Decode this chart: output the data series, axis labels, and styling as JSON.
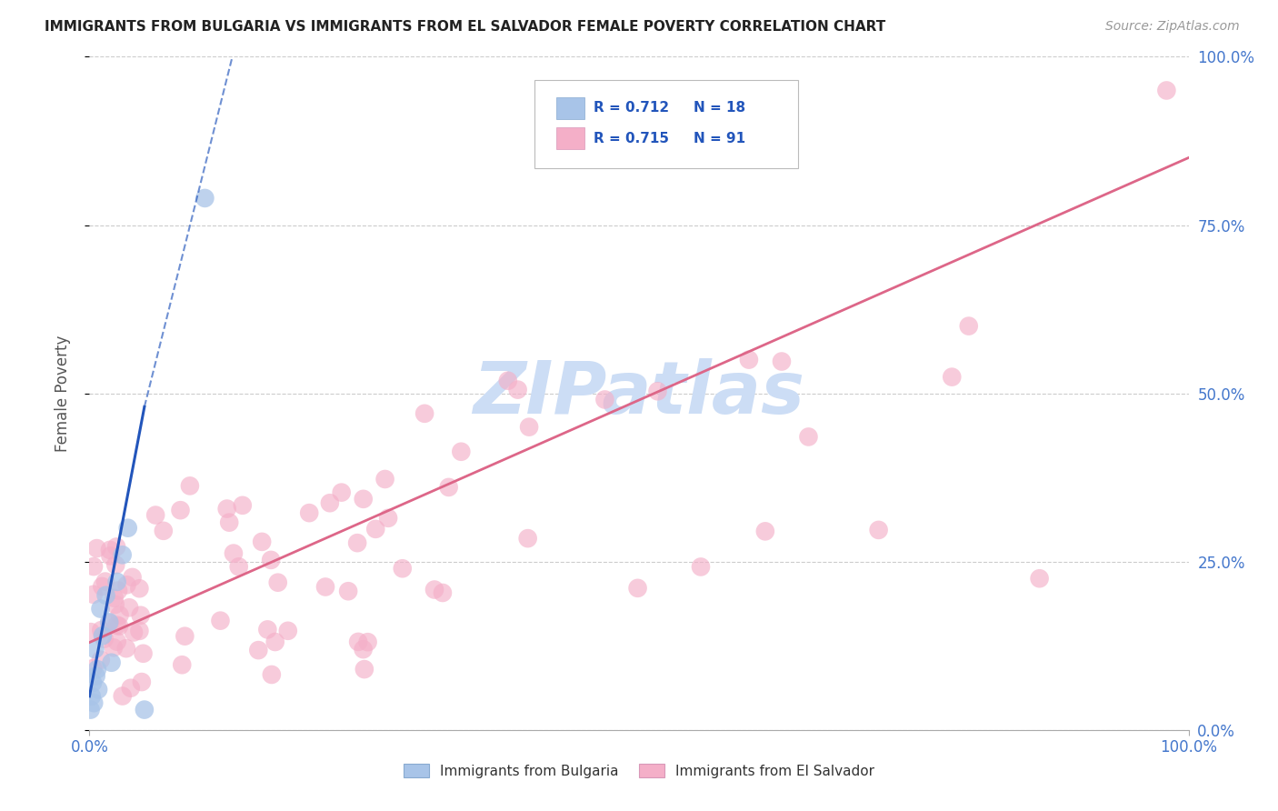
{
  "title": "IMMIGRANTS FROM BULGARIA VS IMMIGRANTS FROM EL SALVADOR FEMALE POVERTY CORRELATION CHART",
  "source": "Source: ZipAtlas.com",
  "ylabel": "Female Poverty",
  "watermark": "ZIPatlas",
  "bulgaria_color": "#a8c4e8",
  "salvador_color": "#f4afc8",
  "bulgaria_line_color": "#2255bb",
  "salvador_line_color": "#dd6688",
  "grid_color": "#cccccc",
  "background_color": "#ffffff",
  "watermark_color": "#ccddf5",
  "ytick_color": "#4477cc",
  "xtick_color": "#4477cc",
  "legend_label1": "Immigrants from Bulgaria",
  "legend_label2": "Immigrants from El Salvador",
  "xlim": [
    0,
    100
  ],
  "ylim": [
    0,
    100
  ],
  "yticks": [
    0,
    25,
    50,
    75,
    100
  ],
  "ytick_labels": [
    "0.0%",
    "25.0%",
    "50.0%",
    "75.0%",
    "100.0%"
  ],
  "xtick_labels": [
    "0.0%",
    "100.0%"
  ],
  "sal_line_x0": 0,
  "sal_line_y0": 13,
  "sal_line_x1": 100,
  "sal_line_y1": 85,
  "bul_line_solid_x0": 0,
  "bul_line_solid_y0": 5,
  "bul_line_solid_x1": 5,
  "bul_line_solid_y1": 48,
  "bul_line_dash_x0": 5,
  "bul_line_dash_y0": 48,
  "bul_line_dash_x1": 13,
  "bul_line_dash_y1": 100
}
